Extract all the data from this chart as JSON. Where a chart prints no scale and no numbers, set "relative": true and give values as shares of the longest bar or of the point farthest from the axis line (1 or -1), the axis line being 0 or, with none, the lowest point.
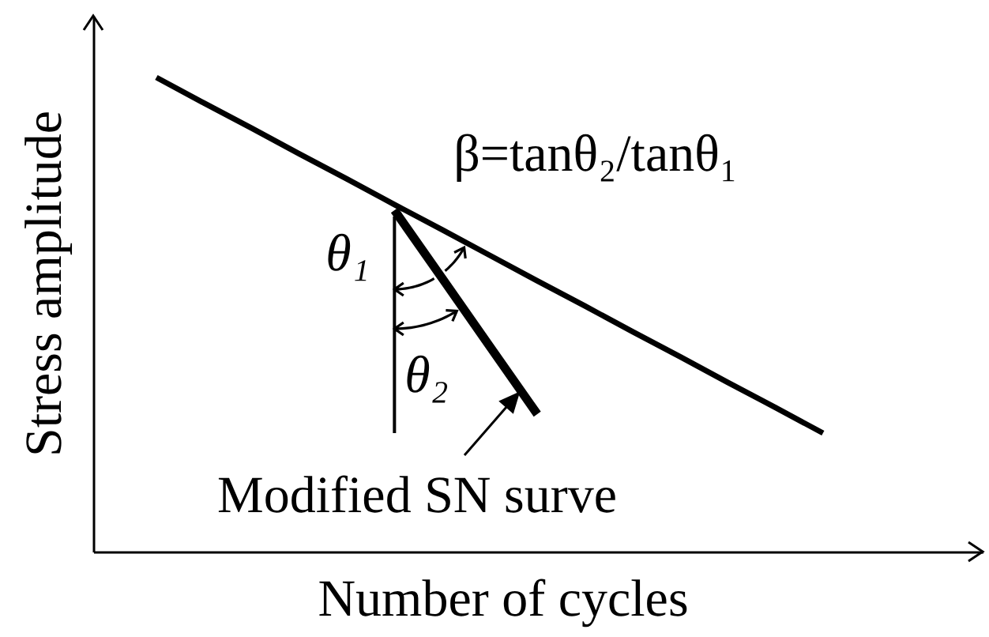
{
  "chart_data": {
    "type": "line",
    "relative": true,
    "xlabel": "Number of cycles",
    "ylabel": "Stress amplitude",
    "categories": [
      null,
      null,
      null,
      null,
      null,
      null,
      null,
      null,
      null,
      null,
      null,
      null,
      null,
      null,
      null,
      null,
      null,
      null,
      null
    ],
    "series": [
      {
        "color": "#000000",
        "values": [
          null,
          null,
          null,
          null,
          null,
          null,
          0.72,
          0.577,
          0.433,
          0.29,
          null,
          null,
          null,
          null,
          null,
          null,
          null,
          null,
          null
        ]
      },
      {
        "color": "#000000",
        "values": [
          null,
          1.0,
          0.946,
          0.893,
          0.839,
          0.786,
          0.732,
          0.679,
          0.625,
          0.571,
          0.518,
          0.464,
          0.411,
          0.357,
          0.304,
          0.25,
          null,
          null,
          null
        ]
      }
    ],
    "annotations": [
      "β=tanθ₂/tanθ₁",
      "θ₁",
      "θ₂",
      "Modified SN surve"
    ]
  }
}
